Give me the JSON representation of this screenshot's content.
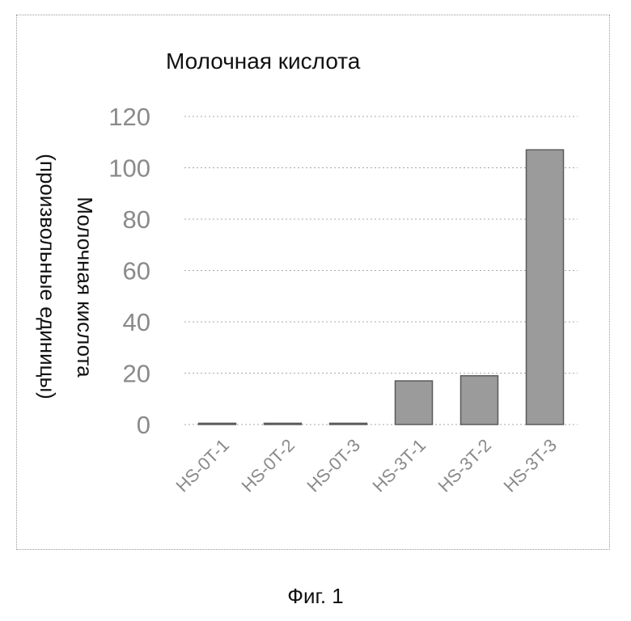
{
  "chart_data": {
    "type": "bar",
    "title": "Молочная кислота",
    "ylabel_line1": "Молочная кислота",
    "ylabel_line2": "(произвольные единицы)",
    "xlabel": "",
    "categories": [
      "HS-0T-1",
      "HS-0T-2",
      "HS-0T-3",
      "HS-3T-1",
      "HS-3T-2",
      "HS-3T-3"
    ],
    "values": [
      0.5,
      0.5,
      0.5,
      17,
      19,
      107
    ],
    "ylim": [
      0,
      120
    ],
    "yticks": [
      "0",
      "20",
      "40",
      "60",
      "80",
      "100",
      "120"
    ],
    "grid": true,
    "bar_color": "#9b9b9b",
    "bar_edge_color": "#5a5a5a"
  },
  "caption": "Фиг. 1"
}
